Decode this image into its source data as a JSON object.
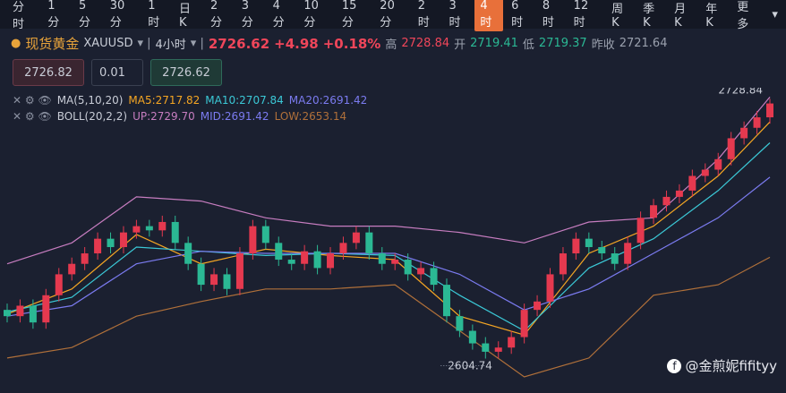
{
  "toolbar": {
    "intervals": [
      "分时",
      "1分",
      "5分",
      "30分",
      "1时",
      "日K",
      "2分",
      "3分",
      "4分",
      "10分",
      "15分",
      "20分",
      "2时",
      "3时",
      "4时",
      "6时",
      "8时",
      "12时",
      "周K",
      "季K",
      "月K",
      "年K",
      "更多"
    ],
    "active_index": 14
  },
  "quote": {
    "name": "现货黄金",
    "symbol": "XAUUSD",
    "period": "4小时",
    "price": "2726.62",
    "change": "+4.98",
    "change_pct": "+0.18%",
    "high_label": "高",
    "high": "2728.84",
    "open_label": "开",
    "open": "2719.41",
    "low_label": "低",
    "low": "2719.37",
    "prev_close_label": "昨收",
    "prev_close": "2721.64"
  },
  "order": {
    "sell": "2726.82",
    "lots": "0.01",
    "buy": "2726.62"
  },
  "watermark": "@金煎妮fifityy",
  "chart_data": {
    "type": "candlestick",
    "up_color": "#e5394f",
    "down_color": "#2bb894",
    "ylim": [
      2590,
      2732
    ],
    "open": [
      2628,
      2625,
      2630,
      2622,
      2635,
      2645,
      2650,
      2655,
      2662,
      2658,
      2665,
      2668,
      2666,
      2670,
      2660,
      2650,
      2640,
      2645,
      2638,
      2655,
      2668,
      2660,
      2652,
      2650,
      2656,
      2648,
      2655,
      2660,
      2665,
      2655,
      2650,
      2652,
      2645,
      2648,
      2640,
      2625,
      2618,
      2612,
      2608,
      2610,
      2615,
      2628,
      2632,
      2645,
      2655,
      2662,
      2658,
      2655,
      2650,
      2660,
      2672,
      2678,
      2682,
      2685,
      2692,
      2695,
      2700,
      2710,
      2715,
      2720
    ],
    "high": [
      2631,
      2633,
      2633,
      2638,
      2648,
      2653,
      2658,
      2665,
      2665,
      2668,
      2671,
      2671,
      2673,
      2673,
      2663,
      2653,
      2648,
      2648,
      2658,
      2671,
      2671,
      2663,
      2655,
      2659,
      2659,
      2658,
      2663,
      2668,
      2668,
      2658,
      2655,
      2655,
      2651,
      2651,
      2643,
      2628,
      2621,
      2615,
      2613,
      2618,
      2631,
      2635,
      2648,
      2658,
      2665,
      2665,
      2661,
      2658,
      2663,
      2675,
      2681,
      2685,
      2688,
      2695,
      2698,
      2703,
      2713,
      2718,
      2723,
      2728.84
    ],
    "low": [
      2622,
      2622,
      2619,
      2619,
      2632,
      2642,
      2647,
      2652,
      2655,
      2655,
      2662,
      2663,
      2663,
      2657,
      2647,
      2637,
      2637,
      2635,
      2635,
      2652,
      2657,
      2649,
      2647,
      2647,
      2645,
      2645,
      2652,
      2657,
      2652,
      2647,
      2647,
      2642,
      2642,
      2637,
      2622,
      2615,
      2609,
      2604.74,
      2605,
      2607,
      2612,
      2625,
      2629,
      2642,
      2652,
      2655,
      2652,
      2647,
      2647,
      2657,
      2669,
      2675,
      2679,
      2682,
      2689,
      2692,
      2697,
      2707,
      2712,
      2717
    ],
    "close": [
      2625,
      2630,
      2622,
      2635,
      2645,
      2650,
      2655,
      2662,
      2658,
      2665,
      2668,
      2666,
      2670,
      2660,
      2650,
      2640,
      2645,
      2638,
      2655,
      2668,
      2660,
      2652,
      2650,
      2656,
      2648,
      2655,
      2660,
      2665,
      2655,
      2650,
      2652,
      2645,
      2648,
      2640,
      2625,
      2618,
      2612,
      2608,
      2610,
      2615,
      2628,
      2632,
      2645,
      2655,
      2662,
      2658,
      2655,
      2650,
      2660,
      2672,
      2678,
      2682,
      2685,
      2692,
      2695,
      2700,
      2710,
      2715,
      2720,
      2726.62
    ],
    "series": [
      {
        "color": "#f5a623",
        "x": [
          0,
          5,
          10,
          15,
          20,
          25,
          30,
          35,
          40,
          45,
          50,
          55,
          59
        ],
        "values": [
          2626,
          2638,
          2664,
          2650,
          2657,
          2654,
          2652,
          2625,
          2616,
          2655,
          2668,
          2692,
          2717.82
        ]
      },
      {
        "color": "#3bc8d6",
        "x": [
          0,
          5,
          10,
          15,
          20,
          25,
          30,
          35,
          40,
          45,
          50,
          55,
          59
        ],
        "values": [
          2627,
          2634,
          2658,
          2656,
          2654,
          2655,
          2654,
          2635,
          2618,
          2648,
          2662,
          2685,
          2707.84
        ]
      },
      {
        "color": "#7b7bf0",
        "x": [
          0,
          5,
          10,
          15,
          20,
          25,
          30,
          35,
          40,
          45,
          50,
          55,
          59
        ],
        "values": [
          2625,
          2630,
          2650,
          2656,
          2655,
          2655,
          2655,
          2645,
          2628,
          2638,
          2655,
          2672,
          2691.42
        ]
      },
      {
        "color": "#c77dc0",
        "x": [
          0,
          5,
          10,
          15,
          20,
          25,
          30,
          35,
          40,
          45,
          50,
          55,
          59
        ],
        "values": [
          2650,
          2660,
          2682,
          2680,
          2672,
          2668,
          2668,
          2665,
          2660,
          2670,
          2672,
          2700,
          2729.7
        ]
      },
      {
        "color": "#b0703a",
        "x": [
          0,
          5,
          10,
          15,
          20,
          25,
          30,
          35,
          40,
          45,
          50,
          55,
          59
        ],
        "values": [
          2605,
          2610,
          2625,
          2632,
          2638,
          2638,
          2640,
          2618,
          2596,
          2605,
          2635,
          2640,
          2653.14
        ]
      }
    ],
    "legend": [
      {
        "name": "MA(5,10,20)",
        "items": [
          {
            "label": "MA5:2717.82",
            "color": "#f5a623"
          },
          {
            "label": "MA10:2707.84",
            "color": "#3bc8d6"
          },
          {
            "label": "MA20:2691.42",
            "color": "#7b7bf0"
          }
        ]
      },
      {
        "name": "BOLL(20,2,2)",
        "items": [
          {
            "label": "UP:2729.70",
            "color": "#c77dc0"
          },
          {
            "label": "MID:2691.42",
            "color": "#7b7bf0"
          },
          {
            "label": "LOW:2653.14",
            "color": "#b0703a"
          }
        ]
      }
    ],
    "max_label": "2728.84",
    "min_label": "2604.74"
  }
}
